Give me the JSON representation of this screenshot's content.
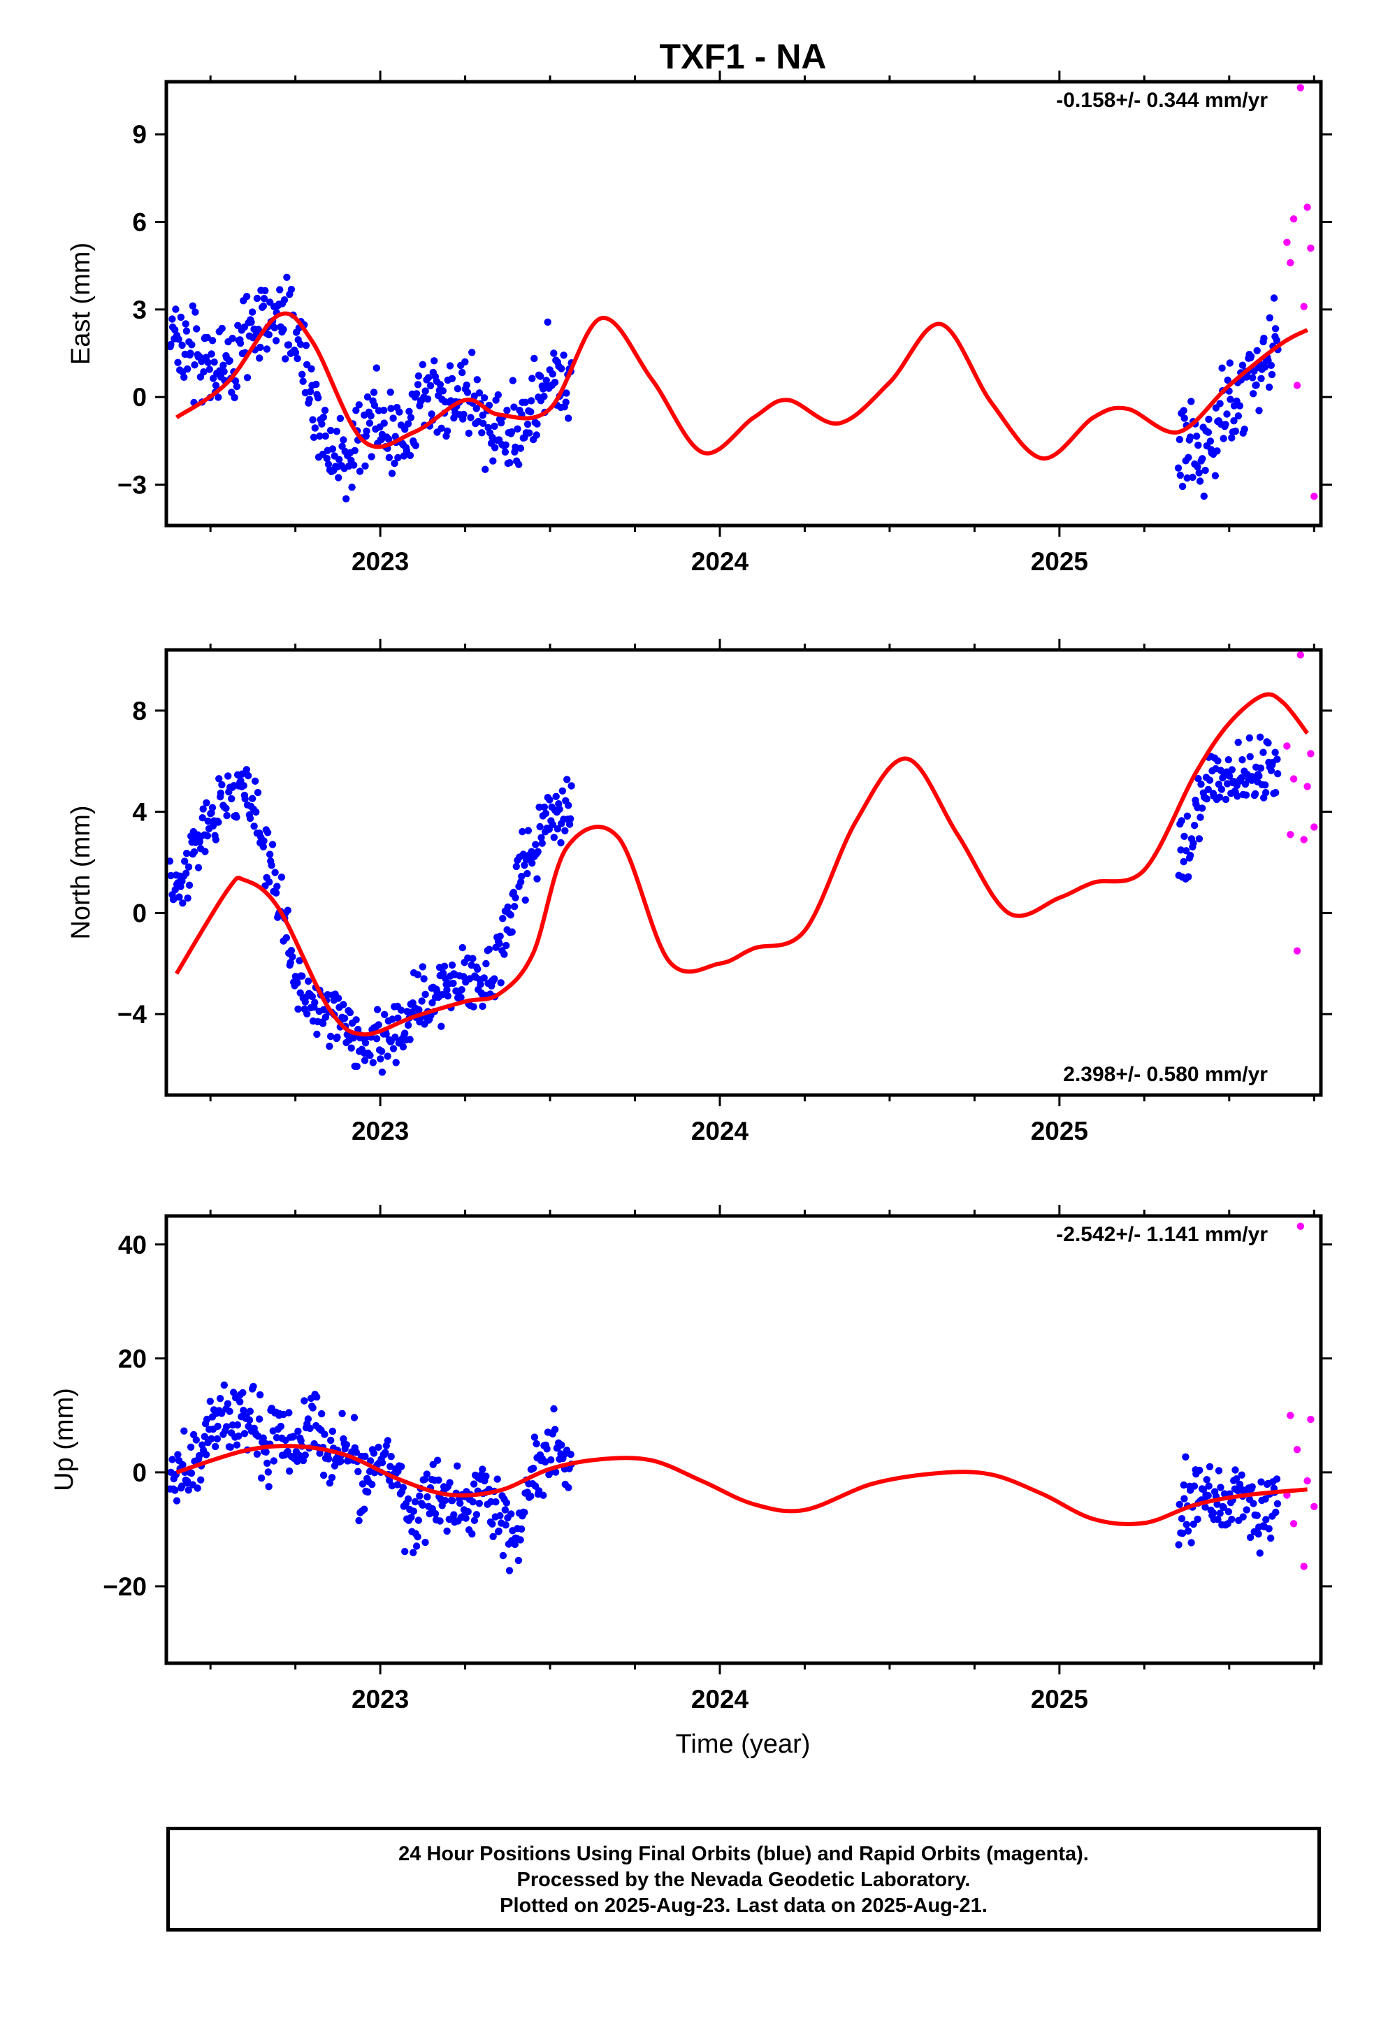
{
  "title": "TXF1 - NA",
  "colors": {
    "final": "#0000ff",
    "rapid": "#ff00ff",
    "model": "#ff0000"
  },
  "xlabel": "Time (year)",
  "x_tick_labels": [
    "2023",
    "2024",
    "2025"
  ],
  "footer": {
    "line1": "24 Hour Positions Using Final Orbits (blue) and Rapid Orbits (magenta).",
    "line2": "Processed by the Nevada Geodetic Laboratory.",
    "line3": "Plotted on 2025-Aug-23. Last data on 2025-Aug-21."
  },
  "chart_data": [
    {
      "type": "scatter",
      "ylabel": "East (mm)",
      "xlim": [
        2022.37,
        2025.77
      ],
      "ylim": [
        -4.4,
        10.8
      ],
      "yticks": [
        -3,
        0,
        3,
        6,
        9
      ],
      "ytick_labels": [
        "−3",
        "0",
        "3",
        "6",
        "9"
      ],
      "rate": "-0.158+/- 0.344 mm/yr",
      "rate_pos": "top-right",
      "series": [
        {
          "kind": "final",
          "x": [
            2022.4,
            2022.45,
            2022.5,
            2022.55,
            2022.6,
            2022.65,
            2022.7,
            2022.75,
            2022.8,
            2022.85,
            2022.9,
            2022.95,
            2023.0,
            2023.05,
            2023.1,
            2023.15,
            2023.2,
            2023.25,
            2023.3,
            2023.35,
            2023.4,
            2023.45,
            2023.5,
            2023.55,
            2025.38,
            2025.43,
            2025.48,
            2025.53,
            2025.58,
            2025.63
          ],
          "y": [
            2.1,
            1.2,
            1.6,
            0.8,
            2.0,
            2.6,
            2.9,
            2.5,
            0.2,
            -1.6,
            -2.2,
            -1.0,
            -0.8,
            -1.7,
            -0.4,
            0.1,
            -0.2,
            0.3,
            -0.8,
            -1.1,
            -1.0,
            -0.5,
            0.4,
            0.6,
            -1.4,
            -2.3,
            -0.6,
            -0.1,
            0.9,
            1.8
          ]
        },
        {
          "kind": "rapid",
          "x": [
            2025.67,
            2025.68,
            2025.69,
            2025.7,
            2025.71,
            2025.72,
            2025.73,
            2025.74,
            2025.75
          ],
          "y": [
            5.3,
            4.6,
            6.1,
            0.4,
            10.6,
            3.1,
            6.5,
            5.1,
            -3.4
          ]
        },
        {
          "kind": "model",
          "x": [
            2022.4,
            2022.55,
            2022.7,
            2022.8,
            2022.95,
            2023.1,
            2023.25,
            2023.35,
            2023.5,
            2023.65,
            2023.8,
            2023.95,
            2024.1,
            2024.2,
            2024.35,
            2024.5,
            2024.65,
            2024.8,
            2024.95,
            2025.1,
            2025.2,
            2025.35,
            2025.5,
            2025.65,
            2025.73
          ],
          "y": [
            -0.7,
            0.5,
            2.8,
            1.9,
            -1.5,
            -1.2,
            -0.1,
            -0.6,
            -0.4,
            2.7,
            0.6,
            -1.9,
            -0.7,
            -0.1,
            -0.9,
            0.5,
            2.5,
            -0.2,
            -2.1,
            -0.7,
            -0.4,
            -1.2,
            0.4,
            1.8,
            2.3
          ]
        }
      ]
    },
    {
      "type": "scatter",
      "ylabel": "North (mm)",
      "xlim": [
        2022.37,
        2025.77
      ],
      "ylim": [
        -7.2,
        10.4
      ],
      "yticks": [
        -4,
        0,
        4,
        8
      ],
      "ytick_labels": [
        "−4",
        "0",
        "4",
        "8"
      ],
      "rate": "2.398+/- 0.580 mm/yr",
      "rate_pos": "bottom-right",
      "series": [
        {
          "kind": "final",
          "x": [
            2022.4,
            2022.45,
            2022.5,
            2022.55,
            2022.6,
            2022.65,
            2022.7,
            2022.75,
            2022.8,
            2022.85,
            2022.9,
            2022.95,
            2023.0,
            2023.05,
            2023.1,
            2023.15,
            2023.2,
            2023.25,
            2023.3,
            2023.35,
            2023.4,
            2023.45,
            2023.5,
            2023.55,
            2025.38,
            2025.43,
            2025.48,
            2025.53,
            2025.58,
            2025.63
          ],
          "y": [
            1.0,
            2.5,
            3.5,
            4.6,
            4.9,
            3.1,
            0.5,
            -2.5,
            -3.6,
            -4.0,
            -4.5,
            -5.3,
            -5.1,
            -4.6,
            -3.9,
            -3.4,
            -3.0,
            -2.6,
            -2.8,
            -1.6,
            1.0,
            2.6,
            3.4,
            4.4,
            2.6,
            5.0,
            5.3,
            5.6,
            5.2,
            5.6
          ]
        },
        {
          "kind": "rapid",
          "x": [
            2025.67,
            2025.68,
            2025.69,
            2025.7,
            2025.71,
            2025.72,
            2025.73,
            2025.74,
            2025.75
          ],
          "y": [
            6.6,
            3.1,
            5.3,
            -1.5,
            10.2,
            2.9,
            5.0,
            6.3,
            3.4
          ]
        },
        {
          "kind": "model",
          "x": [
            2022.4,
            2022.55,
            2022.6,
            2022.7,
            2022.85,
            2022.95,
            2023.1,
            2023.25,
            2023.35,
            2023.45,
            2023.55,
            2023.7,
            2023.85,
            2024.0,
            2024.1,
            2024.25,
            2024.4,
            2024.55,
            2024.7,
            2024.85,
            2025.0,
            2025.1,
            2025.25,
            2025.4,
            2025.5,
            2025.6,
            2025.66,
            2025.73
          ],
          "y": [
            -2.4,
            0.9,
            1.3,
            0.2,
            -3.8,
            -4.8,
            -4.1,
            -3.5,
            -3.2,
            -1.6,
            2.6,
            3.0,
            -1.9,
            -2.0,
            -1.4,
            -0.7,
            3.6,
            6.1,
            3.1,
            0.0,
            0.6,
            1.2,
            1.7,
            5.5,
            7.5,
            8.6,
            8.3,
            7.1
          ]
        }
      ]
    },
    {
      "type": "scatter",
      "ylabel": "Up (mm)",
      "xlim": [
        2022.37,
        2025.77
      ],
      "ylim": [
        -33.5,
        45.0
      ],
      "yticks": [
        -20,
        0,
        20,
        40
      ],
      "ytick_labels": [
        "−20",
        "0",
        "20",
        "40"
      ],
      "rate": "-2.542+/- 1.141 mm/yr",
      "rate_pos": "top-right",
      "series": [
        {
          "kind": "final",
          "x": [
            2022.4,
            2022.45,
            2022.5,
            2022.55,
            2022.6,
            2022.65,
            2022.7,
            2022.75,
            2022.8,
            2022.85,
            2022.9,
            2022.95,
            2023.0,
            2023.05,
            2023.1,
            2023.15,
            2023.2,
            2023.25,
            2023.3,
            2023.35,
            2023.4,
            2023.45,
            2023.5,
            2023.55,
            2025.38,
            2025.43,
            2025.48,
            2025.53,
            2025.58,
            2025.63
          ],
          "y": [
            -1.5,
            2.5,
            6.0,
            8.4,
            10.9,
            5.2,
            7.6,
            3.3,
            9.6,
            2.4,
            5.7,
            -2.8,
            4.2,
            -0.9,
            -9.5,
            -3.7,
            -5.5,
            -7.0,
            -2.9,
            -6.6,
            -11.8,
            -0.5,
            4.8,
            2.1,
            -6.0,
            -2.7,
            -7.5,
            -4.2,
            -9.1,
            -5.3
          ]
        },
        {
          "kind": "rapid",
          "x": [
            2025.67,
            2025.68,
            2025.69,
            2025.7,
            2025.71,
            2025.72,
            2025.73,
            2025.74,
            2025.75
          ],
          "y": [
            -4.0,
            10.0,
            -9.0,
            4.0,
            43.2,
            -16.5,
            -1.5,
            9.3,
            -6.0
          ]
        },
        {
          "kind": "model",
          "x": [
            2022.4,
            2022.6,
            2022.75,
            2022.9,
            2023.05,
            2023.2,
            2023.35,
            2023.5,
            2023.65,
            2023.8,
            2023.95,
            2024.1,
            2024.25,
            2024.45,
            2024.65,
            2024.8,
            2024.95,
            2025.1,
            2025.25,
            2025.4,
            2025.55,
            2025.73
          ],
          "y": [
            0.0,
            3.8,
            4.6,
            3.0,
            -1.1,
            -3.9,
            -3.2,
            0.6,
            2.3,
            2.1,
            -1.6,
            -5.6,
            -6.6,
            -2.0,
            -0.1,
            -0.4,
            -3.8,
            -8.2,
            -8.9,
            -5.7,
            -4.0,
            -3.0
          ]
        }
      ]
    }
  ]
}
